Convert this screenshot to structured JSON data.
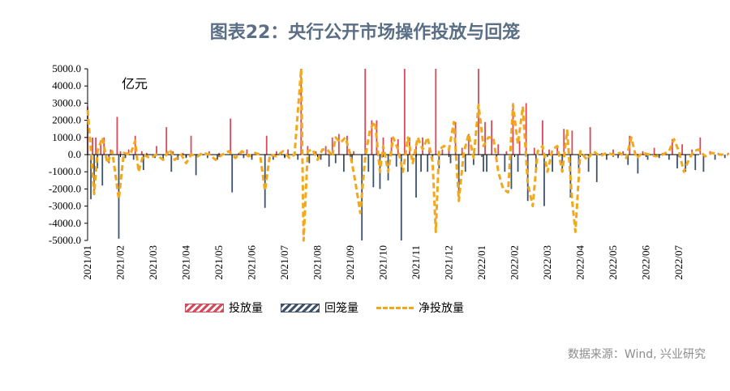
{
  "title": "图表22：央行公开市场操作投放与回笼",
  "unit": "亿元",
  "source": "数据来源：Wind, 兴业研究",
  "colors": {
    "inject": "#d64a5a",
    "withdraw": "#3f526b",
    "net": "#f2a81d",
    "title": "#5a6e86"
  },
  "chart_data": {
    "type": "bar",
    "ylim": [
      -5000,
      5000
    ],
    "yticks": [
      "5000.0",
      "4000.0",
      "3000.0",
      "2000.0",
      "1000.0",
      "0.0",
      "-1000.0",
      "-2000.0",
      "-3000.0",
      "-4000.0",
      "-5000.0"
    ],
    "ytick_values": [
      5000,
      4000,
      3000,
      2000,
      1000,
      0,
      -1000,
      -2000,
      -3000,
      -4000,
      -5000
    ],
    "xticks": [
      "2021/01",
      "2021/02",
      "2021/03",
      "2021/04",
      "2021/05",
      "2021/06",
      "2021/07",
      "2021/08",
      "2021/09",
      "2021/10",
      "2021/11",
      "2021/12",
      "2022/01",
      "2022/02",
      "2022/03",
      "2022/04",
      "2022/05",
      "2022/06",
      "2022/07"
    ],
    "legend": [
      "投放量",
      "回笼量",
      "净投放量"
    ],
    "legend_position": "bottom",
    "grid": false,
    "series": [
      {
        "name": "投放量",
        "points": [
          [
            0.0,
            2800
          ],
          [
            0.3,
            1000
          ],
          [
            0.5,
            1000
          ],
          [
            0.8,
            800
          ],
          [
            1.0,
            1000
          ],
          [
            1.4,
            300
          ],
          [
            1.8,
            2200
          ],
          [
            2.0,
            200
          ],
          [
            2.5,
            300
          ],
          [
            2.9,
            1100
          ],
          [
            3.3,
            200
          ],
          [
            3.6,
            100
          ],
          [
            4.2,
            500
          ],
          [
            4.8,
            1600
          ],
          [
            5.2,
            200
          ],
          [
            5.8,
            100
          ],
          [
            6.3,
            1100
          ],
          [
            6.9,
            100
          ],
          [
            7.4,
            200
          ],
          [
            8.0,
            100
          ],
          [
            8.7,
            2100
          ],
          [
            9.2,
            100
          ],
          [
            9.7,
            300
          ],
          [
            10.4,
            100
          ],
          [
            10.9,
            1100
          ],
          [
            11.5,
            200
          ],
          [
            12.2,
            300
          ],
          [
            13.0,
            5000
          ],
          [
            13.4,
            500
          ],
          [
            13.9,
            200
          ],
          [
            14.5,
            500
          ],
          [
            14.9,
            1000
          ],
          [
            15.3,
            1200
          ],
          [
            15.8,
            1100
          ],
          [
            16.2,
            200
          ],
          [
            16.9,
            5000
          ],
          [
            17.3,
            2000
          ],
          [
            17.6,
            2000
          ],
          [
            18.0,
            1000
          ],
          [
            18.5,
            1000
          ],
          [
            18.9,
            900
          ],
          [
            19.3,
            5000
          ],
          [
            19.6,
            1000
          ],
          [
            20.0,
            500
          ],
          [
            20.4,
            1000
          ],
          [
            20.8,
            400
          ],
          [
            21.2,
            5000
          ],
          [
            21.6,
            300
          ],
          [
            22.0,
            500
          ],
          [
            22.4,
            1900
          ],
          [
            22.8,
            400
          ],
          [
            23.2,
            1200
          ],
          [
            23.8,
            5000
          ],
          [
            24.2,
            1900
          ],
          [
            24.6,
            2000
          ],
          [
            25.0,
            600
          ],
          [
            25.5,
            200
          ],
          [
            25.9,
            3000
          ],
          [
            26.3,
            800
          ],
          [
            26.7,
            3000
          ],
          [
            27.2,
            400
          ],
          [
            27.7,
            2000
          ],
          [
            28.1,
            300
          ],
          [
            28.6,
            500
          ],
          [
            29.0,
            1500
          ],
          [
            29.5,
            1400
          ],
          [
            30.0,
            200
          ],
          [
            30.6,
            1600
          ],
          [
            31.3,
            100
          ],
          [
            32.0,
            300
          ],
          [
            32.6,
            200
          ],
          [
            33.0,
            1100
          ],
          [
            33.8,
            200
          ],
          [
            34.5,
            400
          ],
          [
            35.0,
            100
          ],
          [
            35.6,
            900
          ],
          [
            36.2,
            600
          ],
          [
            36.8,
            300
          ],
          [
            37.3,
            1000
          ],
          [
            37.9,
            200
          ],
          [
            38.4,
            100
          ],
          [
            39.0,
            100
          ]
        ]
      },
      {
        "name": "回笼量",
        "points": [
          [
            0.2,
            -2600
          ],
          [
            0.4,
            -2300
          ],
          [
            0.6,
            -800
          ],
          [
            0.9,
            -1800
          ],
          [
            1.3,
            -500
          ],
          [
            1.9,
            -4900
          ],
          [
            2.3,
            -200
          ],
          [
            2.8,
            -300
          ],
          [
            3.4,
            -900
          ],
          [
            4.1,
            -200
          ],
          [
            4.6,
            -300
          ],
          [
            5.1,
            -1000
          ],
          [
            5.5,
            -300
          ],
          [
            6.0,
            -200
          ],
          [
            6.6,
            -1200
          ],
          [
            7.3,
            -200
          ],
          [
            7.9,
            -300
          ],
          [
            8.8,
            -2200
          ],
          [
            9.5,
            -200
          ],
          [
            10.0,
            -300
          ],
          [
            10.8,
            -3100
          ],
          [
            11.3,
            -300
          ],
          [
            12.0,
            -200
          ],
          [
            12.8,
            -300
          ],
          [
            13.5,
            -500
          ],
          [
            14.2,
            -300
          ],
          [
            14.7,
            -700
          ],
          [
            15.1,
            -500
          ],
          [
            15.6,
            -1000
          ],
          [
            16.1,
            -500
          ],
          [
            16.7,
            -5000
          ],
          [
            17.1,
            -1000
          ],
          [
            17.4,
            -1900
          ],
          [
            17.8,
            -2000
          ],
          [
            18.3,
            -1500
          ],
          [
            18.8,
            -700
          ],
          [
            19.1,
            -5000
          ],
          [
            19.5,
            -1000
          ],
          [
            20.0,
            -2500
          ],
          [
            20.3,
            -1000
          ],
          [
            20.7,
            -1000
          ],
          [
            21.0,
            -300
          ],
          [
            21.4,
            -800
          ],
          [
            22.1,
            -500
          ],
          [
            22.6,
            -2700
          ],
          [
            23.0,
            -1000
          ],
          [
            23.5,
            -600
          ],
          [
            24.1,
            -1000
          ],
          [
            24.3,
            -1000
          ],
          [
            24.9,
            -300
          ],
          [
            25.4,
            -1000
          ],
          [
            25.8,
            -2000
          ],
          [
            26.2,
            -1000
          ],
          [
            26.8,
            -2700
          ],
          [
            27.3,
            -1000
          ],
          [
            27.8,
            -3000
          ],
          [
            28.3,
            -1000
          ],
          [
            28.9,
            -1000
          ],
          [
            29.4,
            -2500
          ],
          [
            29.9,
            -1000
          ],
          [
            30.5,
            -1000
          ],
          [
            31.0,
            -1600
          ],
          [
            31.6,
            -300
          ],
          [
            32.3,
            -200
          ],
          [
            32.9,
            -600
          ],
          [
            33.5,
            -1100
          ],
          [
            34.1,
            -300
          ],
          [
            34.8,
            -200
          ],
          [
            35.4,
            -300
          ],
          [
            35.9,
            -800
          ],
          [
            36.4,
            -1000
          ],
          [
            37.0,
            -900
          ],
          [
            37.5,
            -1000
          ],
          [
            38.2,
            -300
          ],
          [
            38.8,
            -200
          ]
        ]
      },
      {
        "name": "净投放量",
        "points": [
          [
            0.0,
            2600
          ],
          [
            0.2,
            300
          ],
          [
            0.4,
            -2300
          ],
          [
            0.6,
            200
          ],
          [
            0.9,
            1000
          ],
          [
            1.2,
            -500
          ],
          [
            1.5,
            200
          ],
          [
            1.9,
            -2600
          ],
          [
            2.2,
            100
          ],
          [
            2.6,
            0
          ],
          [
            2.9,
            800
          ],
          [
            3.1,
            -1000
          ],
          [
            3.4,
            0
          ],
          [
            3.8,
            -200
          ],
          [
            4.2,
            0
          ],
          [
            4.6,
            -300
          ],
          [
            5.0,
            300
          ],
          [
            5.3,
            -300
          ],
          [
            5.7,
            0
          ],
          [
            6.0,
            -500
          ],
          [
            6.3,
            0
          ],
          [
            6.7,
            -100
          ],
          [
            7.0,
            100
          ],
          [
            7.4,
            0
          ],
          [
            7.8,
            -300
          ],
          [
            8.2,
            0
          ],
          [
            8.6,
            200
          ],
          [
            9.0,
            -200
          ],
          [
            9.4,
            200
          ],
          [
            9.8,
            -100
          ],
          [
            10.2,
            100
          ],
          [
            10.5,
            0
          ],
          [
            10.8,
            -2100
          ],
          [
            11.1,
            0
          ],
          [
            11.5,
            -100
          ],
          [
            11.9,
            200
          ],
          [
            12.3,
            -200
          ],
          [
            12.6,
            0
          ],
          [
            13.0,
            5000
          ],
          [
            13.15,
            -5000
          ],
          [
            13.4,
            200
          ],
          [
            13.7,
            300
          ],
          [
            14.0,
            -300
          ],
          [
            14.3,
            300
          ],
          [
            14.6,
            300
          ],
          [
            14.9,
            -100
          ],
          [
            15.1,
            1000
          ],
          [
            15.4,
            700
          ],
          [
            15.7,
            1000
          ],
          [
            16.0,
            0
          ],
          [
            16.3,
            -1600
          ],
          [
            16.6,
            -3400
          ],
          [
            16.9,
            -200
          ],
          [
            17.2,
            1500
          ],
          [
            17.5,
            1900
          ],
          [
            17.8,
            -1000
          ],
          [
            18.0,
            500
          ],
          [
            18.3,
            -1000
          ],
          [
            18.6,
            1000
          ],
          [
            18.9,
            300
          ],
          [
            19.2,
            -1000
          ],
          [
            19.5,
            1000
          ],
          [
            19.8,
            -500
          ],
          [
            20.1,
            1000
          ],
          [
            20.4,
            300
          ],
          [
            20.7,
            1000
          ],
          [
            21.0,
            -400
          ],
          [
            21.2,
            -4500
          ],
          [
            21.4,
            300
          ],
          [
            21.7,
            500
          ],
          [
            22.0,
            300
          ],
          [
            22.3,
            1900
          ],
          [
            22.6,
            -2700
          ],
          [
            22.9,
            100
          ],
          [
            23.2,
            1200
          ],
          [
            23.5,
            -200
          ],
          [
            23.8,
            2900
          ],
          [
            24.1,
            500
          ],
          [
            24.4,
            1000
          ],
          [
            24.7,
            1000
          ],
          [
            25.0,
            -1000
          ],
          [
            25.3,
            -2000
          ],
          [
            25.6,
            -2200
          ],
          [
            25.9,
            2900
          ],
          [
            26.2,
            600
          ],
          [
            26.5,
            2800
          ],
          [
            26.8,
            -1700
          ],
          [
            27.1,
            -3000
          ],
          [
            27.4,
            200
          ],
          [
            27.7,
            500
          ],
          [
            28.0,
            -1000
          ],
          [
            28.3,
            300
          ],
          [
            28.6,
            500
          ],
          [
            28.9,
            -1000
          ],
          [
            29.2,
            1400
          ],
          [
            29.5,
            -2700
          ],
          [
            29.7,
            -4500
          ],
          [
            30.0,
            200
          ],
          [
            30.4,
            -300
          ],
          [
            30.8,
            200
          ],
          [
            31.2,
            -100
          ],
          [
            31.6,
            100
          ],
          [
            32.0,
            0
          ],
          [
            32.4,
            100
          ],
          [
            32.8,
            -200
          ],
          [
            33.1,
            1000
          ],
          [
            33.4,
            -200
          ],
          [
            33.8,
            100
          ],
          [
            34.2,
            0
          ],
          [
            34.6,
            -100
          ],
          [
            35.0,
            0
          ],
          [
            35.4,
            200
          ],
          [
            35.7,
            900
          ],
          [
            36.0,
            200
          ],
          [
            36.3,
            -1000
          ],
          [
            36.6,
            -300
          ],
          [
            36.9,
            200
          ],
          [
            37.2,
            300
          ],
          [
            37.6,
            -100
          ],
          [
            38.0,
            100
          ],
          [
            38.5,
            0
          ],
          [
            39.0,
            0
          ]
        ]
      }
    ]
  }
}
